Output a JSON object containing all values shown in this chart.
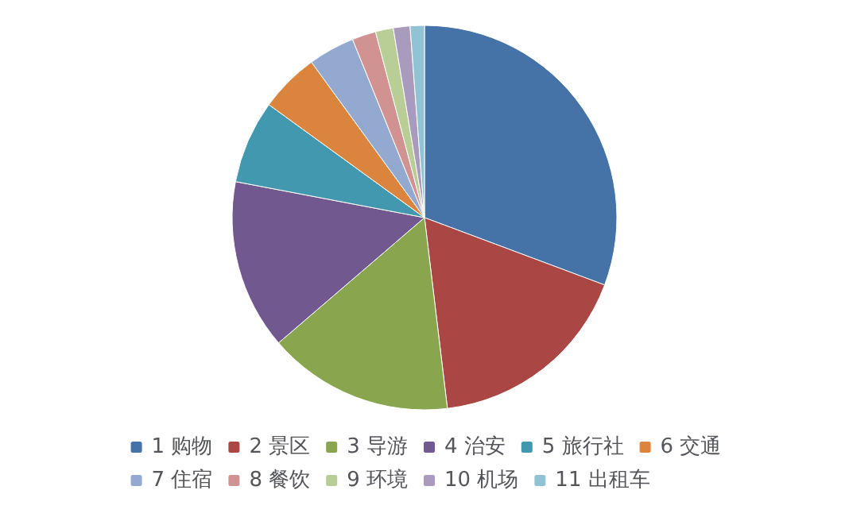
{
  "chart_data": {
    "type": "pie",
    "categories": [
      "1 购物",
      "2 景区",
      "3 导游",
      "4 治安",
      "5 旅行社",
      "6 交通",
      "7 住宿",
      "8 餐饮",
      "9 环境",
      "10 机场",
      "11 出租车"
    ],
    "values": [
      30.7,
      17.4,
      15.6,
      14.3,
      7.0,
      5.0,
      3.9,
      2.0,
      1.5,
      1.4,
      1.2
    ],
    "colors": [
      "#4572a7",
      "#aa4643",
      "#89a54e",
      "#71588f",
      "#4198af",
      "#db843d",
      "#93a9cf",
      "#d19392",
      "#b9cd96",
      "#a99bbd",
      "#92c3d4"
    ],
    "legend": "bottom"
  }
}
